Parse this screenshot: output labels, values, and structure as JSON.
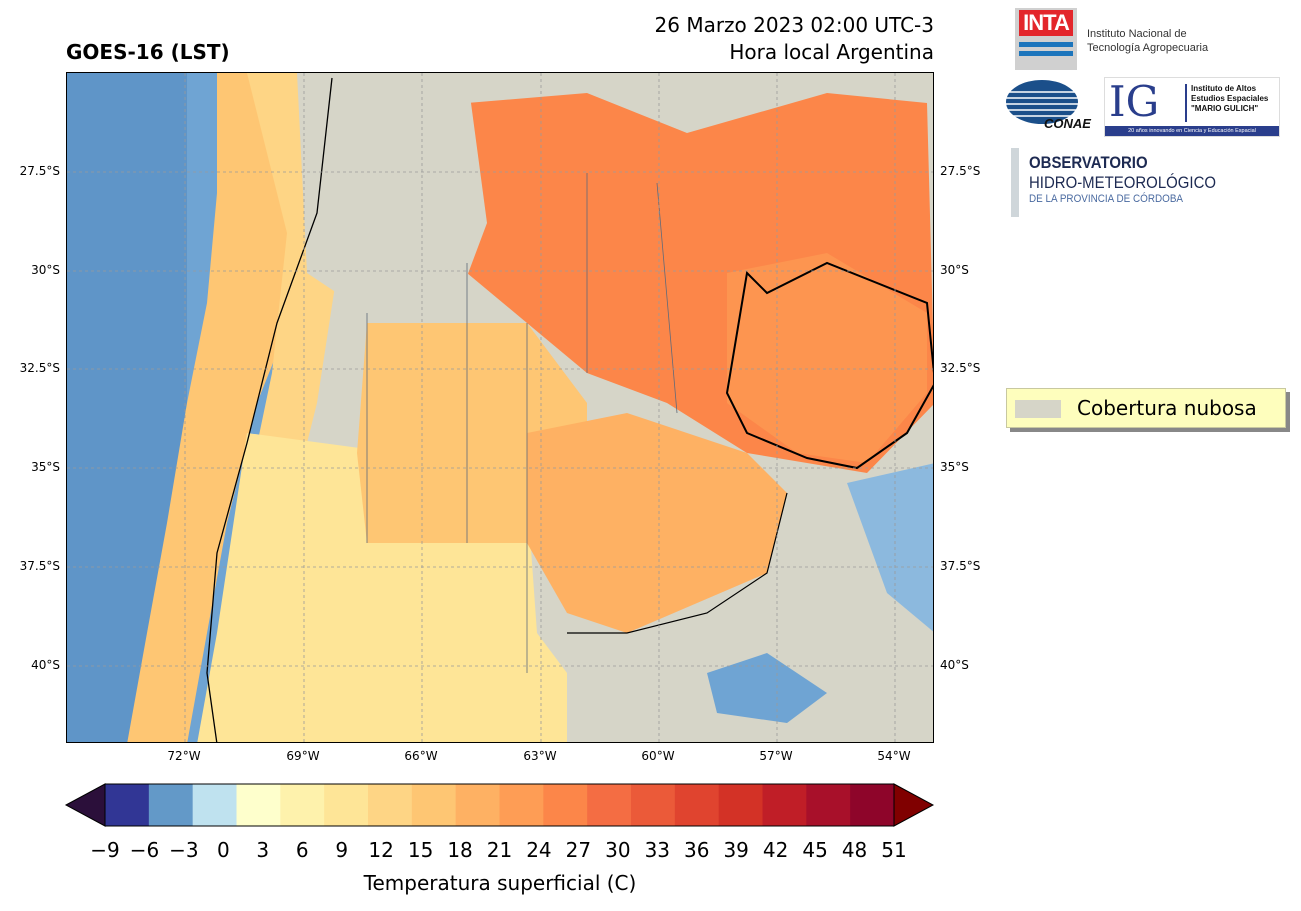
{
  "header": {
    "left_title": "GOES-16 (LST)",
    "date_line": "26 Marzo 2023 02:00 UTC-3",
    "local_line": "Hora local Argentina"
  },
  "map": {
    "lat_labels": [
      "27.5°S",
      "30°S",
      "32.5°S",
      "35°S",
      "37.5°S",
      "40°S"
    ],
    "lon_labels": [
      "72°W",
      "69°W",
      "66°W",
      "63°W",
      "60°W",
      "57°W",
      "54°W"
    ],
    "cloud_color": "#d6d5c8"
  },
  "colorbar": {
    "ticks": [
      "−9",
      "−6",
      "−3",
      "0",
      "3",
      "6",
      "9",
      "12",
      "15",
      "18",
      "21",
      "24",
      "27",
      "30",
      "33",
      "36",
      "39",
      "42",
      "45",
      "48",
      "51"
    ],
    "colors": [
      "#313695",
      "#6399c8",
      "#bfe2ef",
      "#feffcc",
      "#fef2ac",
      "#fee597",
      "#fed585",
      "#fec673",
      "#feb163",
      "#fe9d55",
      "#fc8649",
      "#f46d43",
      "#eb5a39",
      "#e0442f",
      "#d33226",
      "#c01e27",
      "#a8102a",
      "#8e052a"
    ],
    "under_color": "#2b0f3a",
    "over_color": "#800000",
    "label": "Temperatura superficial (C)"
  },
  "legend": {
    "label": "Cobertura nubosa"
  },
  "logos": {
    "inta_mark": "INTA",
    "inta_line1": "Instituto Nacional de",
    "inta_line2": "Tecnología Agropecuaria",
    "conae": "CONAE",
    "ig_mark": "IG",
    "ig_line1": "Instituto de Altos",
    "ig_line2": "Estudios Espaciales",
    "ig_line3": "\"MARIO GULICH\"",
    "ig_footer": "20 años innovando en Ciencia y Educación Espacial",
    "obs_line1": "OBSERVATORIO",
    "obs_line2": "HIDRO-METEOROLÓGICO",
    "obs_line3": "DE LA PROVINCIA DE CÓRDOBA"
  }
}
